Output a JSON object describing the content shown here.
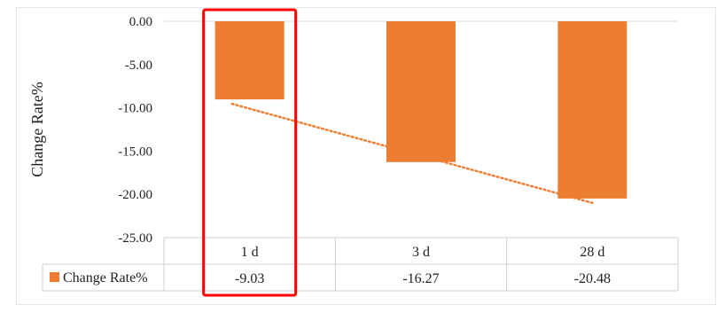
{
  "chart_data": {
    "type": "bar",
    "ylabel": "Change Rate%",
    "ylim": [
      -25,
      0
    ],
    "yticks": [
      "0.00",
      "-5.00",
      "-10.00",
      "-15.00",
      "-20.00",
      "-25.00"
    ],
    "categories": [
      "1 d",
      "3 d",
      "28 d"
    ],
    "series": [
      {
        "name": "Change Rate%",
        "values": [
          -9.03,
          -16.27,
          -20.48
        ],
        "labels": [
          "-9.03",
          "-16.27",
          "-20.48"
        ],
        "color": "#ED7D31"
      }
    ],
    "trendline": {
      "type": "linear",
      "style": "dotted",
      "color": "#ED7D31"
    },
    "data_table": true,
    "highlight": {
      "category": "1 d",
      "color": "#FF0000"
    }
  }
}
